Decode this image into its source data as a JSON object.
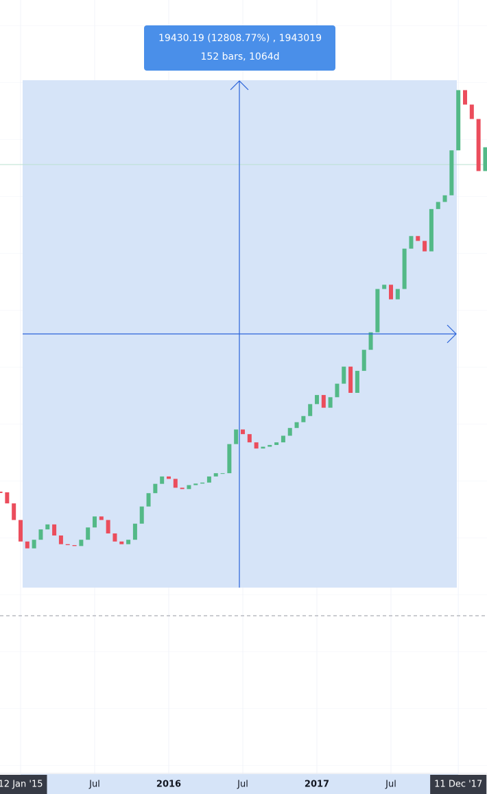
{
  "chart_data": {
    "type": "candlestick",
    "log_scale": true,
    "ylim": [
      25.6,
      42200
    ],
    "up_color": "#53b987",
    "down_color": "#eb4d5c",
    "categories": [
      null,
      null,
      null,
      "12 Jan '15",
      null,
      null,
      null,
      null,
      null,
      null,
      null,
      null,
      null,
      null,
      "Jul",
      null,
      null,
      null,
      null,
      null,
      null,
      null,
      null,
      null,
      null,
      "2016",
      null,
      null,
      null,
      null,
      null,
      null,
      null,
      null,
      null,
      null,
      "Jul",
      null,
      null,
      null,
      null,
      null,
      null,
      null,
      null,
      null,
      null,
      "2017",
      null,
      null,
      null,
      null,
      null,
      null,
      null,
      null,
      null,
      null,
      "Jul",
      null,
      null,
      null,
      null,
      null,
      null,
      null,
      null,
      null,
      "11 Dec '17",
      null,
      null,
      null,
      null
    ],
    "values": [
      378,
      340,
      290,
      236,
      221,
      240,
      265,
      278,
      250,
      230,
      228,
      226,
      240,
      270,
      300,
      290,
      255,
      236,
      230,
      240,
      280,
      330,
      375,
      410,
      440,
      430,
      395,
      390,
      405,
      411,
      415,
      440,
      454,
      454,
      600,
      690,
      660,
      610,
      575,
      585,
      595,
      610,
      650,
      700,
      740,
      785,
      880,
      960,
      850,
      940,
      1070,
      1260,
      980,
      1210,
      1480,
      1750,
      2650,
      2760,
      2400,
      2650,
      3900,
      4400,
      4200,
      3800,
      5700,
      6100,
      6500,
      10000,
      17800,
      15500,
      13500,
      8200,
      10300
    ],
    "measure": {
      "text": "19430.19 (12808.77%) , 1943019",
      "subtext": "152 bars, 1064d"
    }
  }
}
